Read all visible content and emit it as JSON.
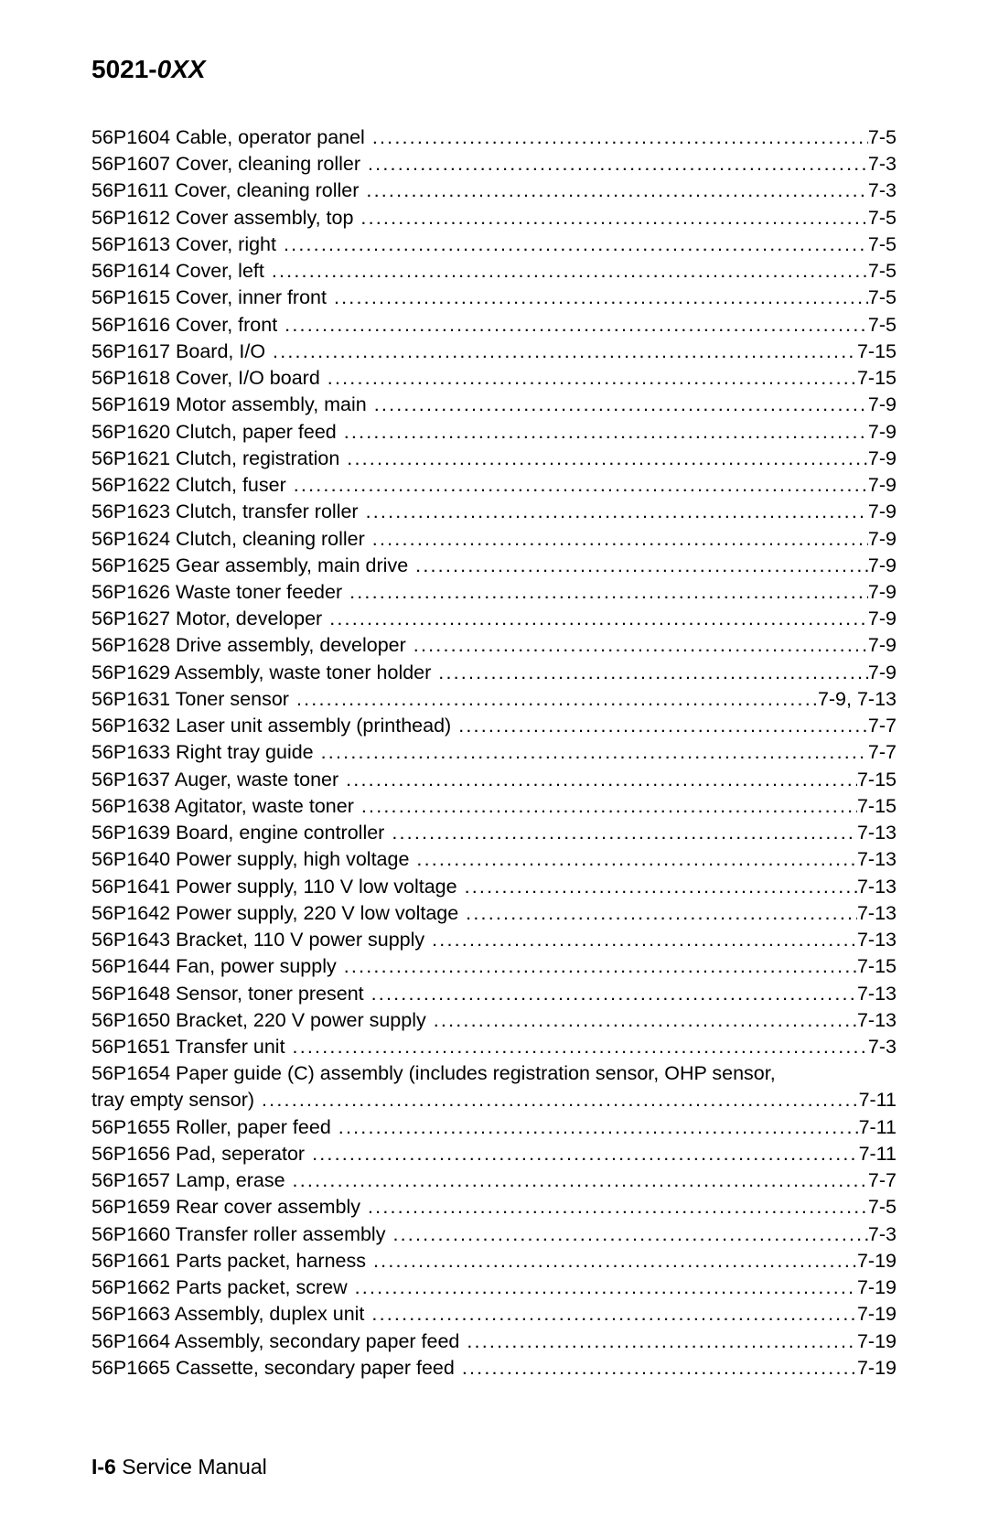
{
  "header": {
    "prefix": "5021-",
    "suffix": "0XX"
  },
  "footer": {
    "page": "I-6",
    "title": "Service Manual"
  },
  "dot_char": ".",
  "entries": [
    {
      "pn": "56P1604",
      "desc": "Cable, operator panel",
      "page": "7-5"
    },
    {
      "pn": "56P1607",
      "desc": "Cover, cleaning roller",
      "page": "7-3"
    },
    {
      "pn": "56P1611",
      "desc": "Cover, cleaning roller",
      "page": "7-3"
    },
    {
      "pn": "56P1612",
      "desc": "Cover assembly, top",
      "page": "7-5"
    },
    {
      "pn": "56P1613",
      "desc": "Cover, right",
      "page": "7-5"
    },
    {
      "pn": "56P1614",
      "desc": "Cover, left",
      "page": "7-5"
    },
    {
      "pn": "56P1615",
      "desc": "Cover, inner front",
      "page": "7-5"
    },
    {
      "pn": "56P1616",
      "desc": "Cover, front",
      "page": "7-5"
    },
    {
      "pn": "56P1617",
      "desc": "Board, I/O",
      "page": "7-15"
    },
    {
      "pn": "56P1618",
      "desc": "Cover, I/O board",
      "page": "7-15"
    },
    {
      "pn": "56P1619",
      "desc": "Motor assembly, main",
      "page": "7-9"
    },
    {
      "pn": "56P1620",
      "desc": "Clutch, paper feed",
      "page": "7-9"
    },
    {
      "pn": "56P1621",
      "desc": "Clutch, registration",
      "page": "7-9"
    },
    {
      "pn": "56P1622",
      "desc": "Clutch, fuser",
      "page": "7-9"
    },
    {
      "pn": "56P1623",
      "desc": "Clutch, transfer roller",
      "page": "7-9"
    },
    {
      "pn": "56P1624",
      "desc": "Clutch, cleaning roller",
      "page": "7-9"
    },
    {
      "pn": "56P1625",
      "desc": "Gear assembly, main drive",
      "page": "7-9"
    },
    {
      "pn": "56P1626",
      "desc": "Waste toner feeder",
      "page": "7-9"
    },
    {
      "pn": "56P1627",
      "desc": "Motor, developer",
      "page": "7-9"
    },
    {
      "pn": "56P1628",
      "desc": "Drive assembly, developer",
      "page": "7-9"
    },
    {
      "pn": "56P1629",
      "desc": "Assembly, waste toner holder",
      "page": "7-9"
    },
    {
      "pn": "56P1631",
      "desc": "Toner sensor",
      "page": "7-9, 7-13"
    },
    {
      "pn": "56P1632",
      "desc": "Laser unit assembly (printhead)",
      "page": "7-7"
    },
    {
      "pn": "56P1633",
      "desc": "Right tray guide",
      "page": "7-7"
    },
    {
      "pn": "56P1637",
      "desc": "Auger, waste toner",
      "page": "7-15"
    },
    {
      "pn": "56P1638",
      "desc": "Agitator, waste toner",
      "page": "7-15"
    },
    {
      "pn": "56P1639",
      "desc": "Board, engine controller",
      "page": "7-13"
    },
    {
      "pn": "56P1640",
      "desc": "Power supply, high voltage",
      "page": "7-13"
    },
    {
      "pn": "56P1641",
      "desc": "Power supply, 110 V low voltage",
      "page": "7-13"
    },
    {
      "pn": "56P1642",
      "desc": "Power supply, 220 V low voltage",
      "page": "7-13"
    },
    {
      "pn": "56P1643",
      "desc": "Bracket, 110 V power supply",
      "page": "7-13"
    },
    {
      "pn": "56P1644",
      "desc": "Fan, power supply",
      "page": "7-15"
    },
    {
      "pn": "56P1648",
      "desc": "Sensor, toner present",
      "page": "7-13"
    },
    {
      "pn": "56P1650",
      "desc": "Bracket, 220 V power supply",
      "page": "7-13"
    },
    {
      "pn": "56P1651",
      "desc": "Transfer unit",
      "page": "7-3"
    },
    {
      "pn": "56P1654",
      "desc": "Paper guide (C) assembly (includes registration sensor, OHP sensor,",
      "wrap": true,
      "cont": "tray empty sensor)",
      "page": "7-11"
    },
    {
      "pn": "56P1655",
      "desc": "Roller, paper feed",
      "page": "7-11"
    },
    {
      "pn": "56P1656",
      "desc": "Pad, seperator",
      "page": "7-11"
    },
    {
      "pn": "56P1657",
      "desc": "Lamp, erase",
      "page": "7-7"
    },
    {
      "pn": "56P1659",
      "desc": "Rear cover assembly",
      "page": "7-5"
    },
    {
      "pn": "56P1660",
      "desc": "Transfer roller assembly",
      "page": "7-3"
    },
    {
      "pn": "56P1661",
      "desc": "Parts packet, harness",
      "page": "7-19"
    },
    {
      "pn": "56P1662",
      "desc": "Parts packet, screw",
      "page": "7-19"
    },
    {
      "pn": "56P1663",
      "desc": "Assembly, duplex unit",
      "page": "7-19"
    },
    {
      "pn": "56P1664",
      "desc": "Assembly, secondary paper feed",
      "page": "7-19"
    },
    {
      "pn": "56P1665",
      "desc": "Cassette, secondary paper feed",
      "page": "7-19"
    }
  ]
}
